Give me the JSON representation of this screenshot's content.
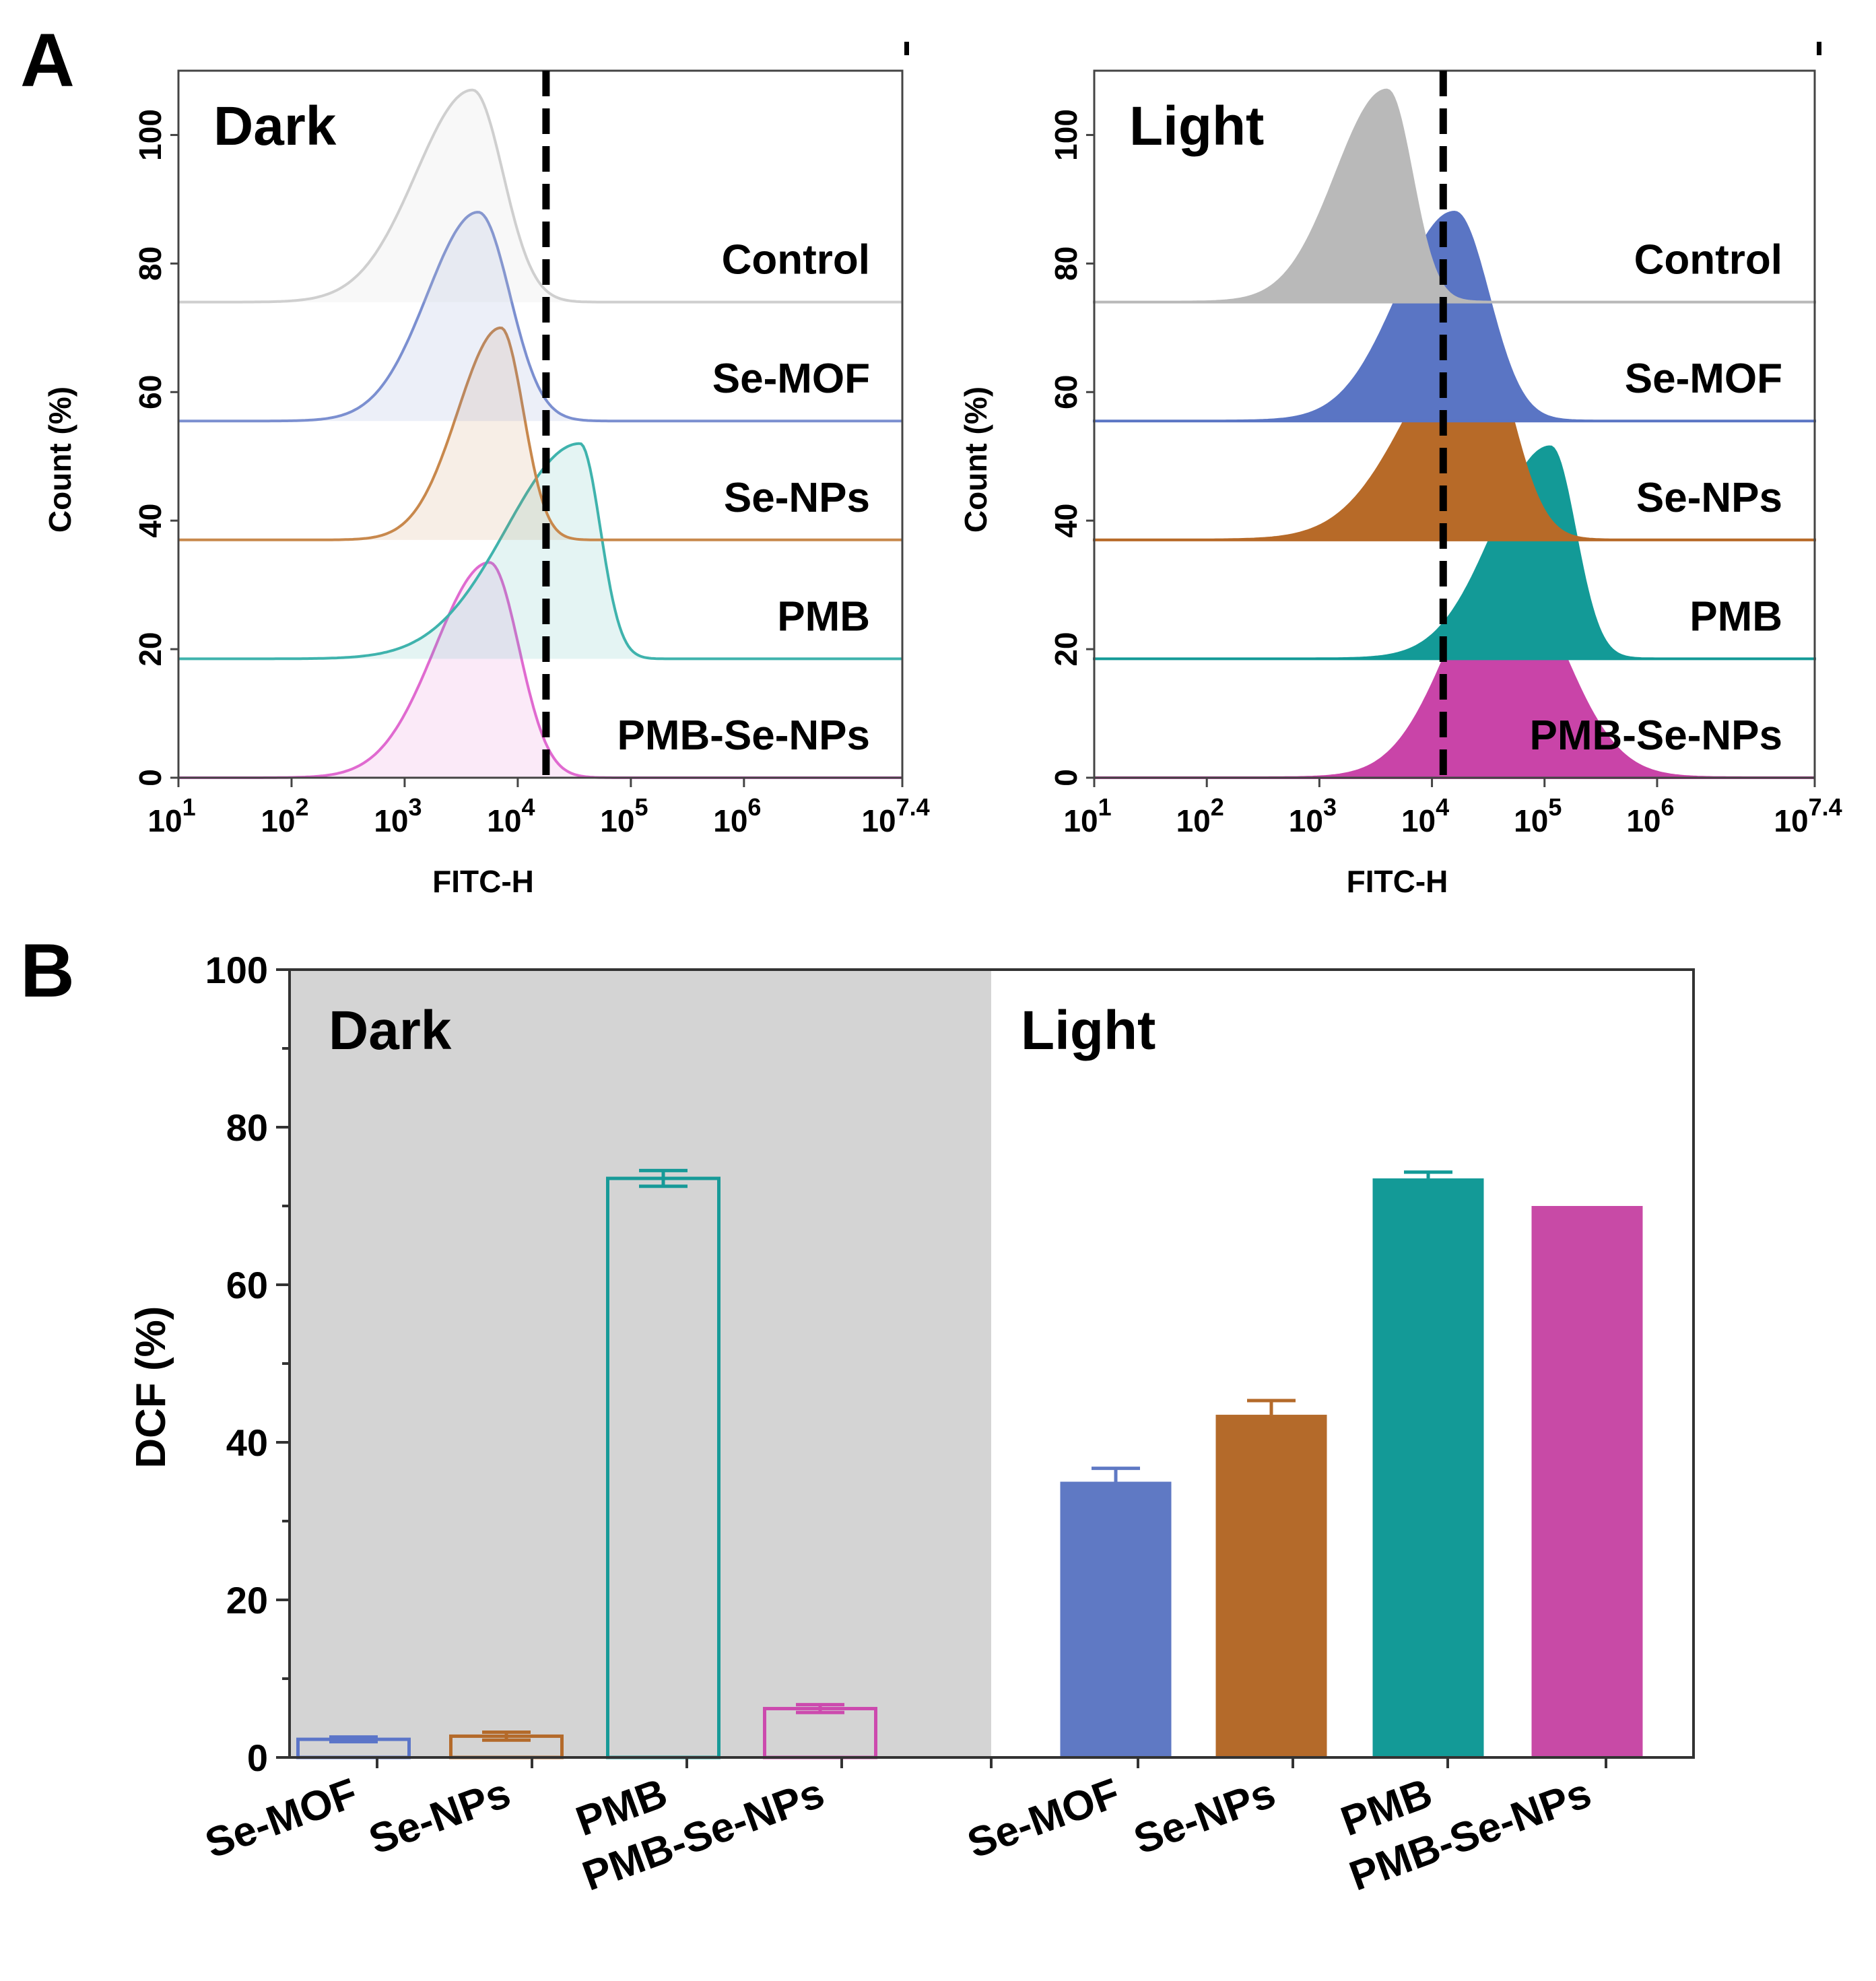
{
  "chart_data": [
    {
      "panel": "A",
      "type": "area",
      "condition": "Dark",
      "style": "outline",
      "xlabel": "FITC-H",
      "ylabel": "Count (%)",
      "x_scale": "log10",
      "xlim_log10": [
        1,
        7.4
      ],
      "ylim": [
        0,
        110
      ],
      "x_ticks": [
        {
          "base": "10",
          "exp": "1"
        },
        {
          "base": "10",
          "exp": "2"
        },
        {
          "base": "10",
          "exp": "3"
        },
        {
          "base": "10",
          "exp": "4"
        },
        {
          "base": "10",
          "exp": "5"
        },
        {
          "base": "10",
          "exp": "6"
        },
        {
          "base": "10",
          "exp": "7.4"
        }
      ],
      "y_ticks": [
        "0",
        "20",
        "40",
        "60",
        "80",
        "100"
      ],
      "threshold_log10": 4.25,
      "series": [
        {
          "name": "Control",
          "color": "#cfcfcf",
          "baseline": 74,
          "peak_log10": 3.6,
          "peak_count": 107,
          "sigma_left": 0.5,
          "sigma_right": 0.27
        },
        {
          "name": "Se-MOF",
          "color": "#7b8fd0",
          "baseline": 55.5,
          "peak_log10": 3.65,
          "peak_count": 88,
          "sigma_left": 0.45,
          "sigma_right": 0.28
        },
        {
          "name": "Se-NPs",
          "color": "#c8884c",
          "baseline": 37,
          "peak_log10": 3.85,
          "peak_count": 70,
          "sigma_left": 0.38,
          "sigma_right": 0.2
        },
        {
          "name": "PMB",
          "color": "#3fb3ad",
          "baseline": 18.5,
          "peak_log10": 4.55,
          "peak_count": 52,
          "sigma_left": 0.65,
          "sigma_right": 0.18
        },
        {
          "name": "PMB-Se-NPs",
          "color": "#e06ad0",
          "baseline": 0,
          "peak_log10": 3.75,
          "peak_count": 33.5,
          "sigma_left": 0.48,
          "sigma_right": 0.26
        }
      ]
    },
    {
      "panel": "A",
      "type": "area",
      "condition": "Light",
      "style": "filled",
      "xlabel": "FITC-H",
      "ylabel": "Count (%)",
      "x_scale": "log10",
      "xlim_log10": [
        1,
        7.4
      ],
      "ylim": [
        0,
        110
      ],
      "x_ticks": [
        {
          "base": "10",
          "exp": "1"
        },
        {
          "base": "10",
          "exp": "2"
        },
        {
          "base": "10",
          "exp": "3"
        },
        {
          "base": "10",
          "exp": "4"
        },
        {
          "base": "10",
          "exp": "5"
        },
        {
          "base": "10",
          "exp": "6"
        },
        {
          "base": "10",
          "exp": "7.4"
        }
      ],
      "y_ticks": [
        "0",
        "20",
        "40",
        "60",
        "80",
        "100"
      ],
      "threshold_log10": 4.1,
      "series": [
        {
          "name": "Control",
          "color": "#b9b9b9",
          "baseline": 74,
          "peak_log10": 3.6,
          "peak_count": 107,
          "sigma_left": 0.45,
          "sigma_right": 0.22
        },
        {
          "name": "Se-MOF",
          "color": "#5a75c4",
          "baseline": 55.5,
          "peak_log10": 4.2,
          "peak_count": 88,
          "sigma_left": 0.5,
          "sigma_right": 0.3
        },
        {
          "name": "Se-NPs",
          "color": "#b76a28",
          "baseline": 37,
          "peak_log10": 4.4,
          "peak_count": 70,
          "sigma_left": 0.6,
          "sigma_right": 0.3
        },
        {
          "name": "PMB",
          "color": "#139a97",
          "baseline": 18.5,
          "peak_log10": 5.05,
          "peak_count": 51.5,
          "sigma_left": 0.5,
          "sigma_right": 0.22
        },
        {
          "name": "PMB-Se-NPs",
          "color": "#c944a8",
          "baseline": 0,
          "peak_log10": 4.65,
          "peak_count": 33.5,
          "sigma_left": 0.5,
          "sigma_right": 0.5
        }
      ]
    },
    {
      "panel": "B",
      "type": "bar",
      "title": "",
      "xlabel": "",
      "ylabel": "DCF (%)",
      "ylim": [
        0,
        100
      ],
      "y_ticks": [
        "0",
        "20",
        "40",
        "60",
        "80",
        "100"
      ],
      "background": {
        "Dark": "#d4d4d4",
        "Light": "#ffffff"
      },
      "groups": [
        {
          "condition": "Dark",
          "style": "outline",
          "categories": [
            "Se-MOF",
            "Se-NPs",
            "PMB",
            "PMB-Se-NPs"
          ],
          "values": [
            2.3,
            2.7,
            73.5,
            6.2
          ],
          "errors": [
            0.3,
            0.5,
            1.0,
            0.5
          ],
          "colors": [
            "#5b75c8",
            "#b46a2a",
            "#179a98",
            "#cc4aae"
          ]
        },
        {
          "condition": "Light",
          "style": "filled",
          "categories": [
            "Se-MOF",
            "Se-NPs",
            "PMB",
            "PMB-Se-NPs"
          ],
          "values": [
            35,
            43.5,
            73.5,
            70
          ],
          "errors": [
            1.7,
            1.8,
            0.8,
            0
          ],
          "colors": [
            "#5f79c4",
            "#b46a2a",
            "#139a97",
            "#c84aa6"
          ]
        }
      ]
    }
  ],
  "labels": {
    "panel_a": "A",
    "panel_b": "B",
    "dark": "Dark",
    "light": "Light",
    "count_axis": "Count  (%)",
    "fitc_axis": "FITC-H",
    "dcf_axis": "DCF (%)"
  }
}
